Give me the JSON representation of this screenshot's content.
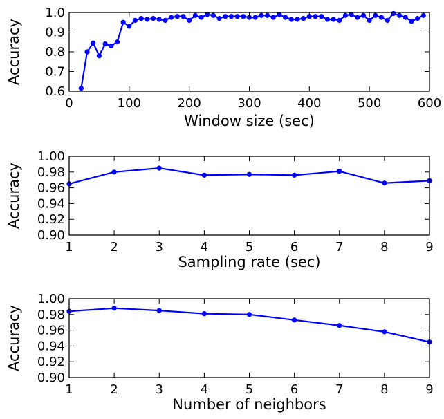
{
  "chart_data": [
    {
      "type": "line",
      "xlabel": "Window size (sec)",
      "ylabel": "Accuracy",
      "xlim": [
        0,
        600
      ],
      "ylim": [
        0.6,
        1.0
      ],
      "xticks": [
        "0",
        "100",
        "200",
        "300",
        "400",
        "500",
        "600"
      ],
      "yticks": [
        "0.6",
        "0.7",
        "0.8",
        "0.9",
        "1.0"
      ],
      "grid": false,
      "color": "#0000ff",
      "series": [
        {
          "x": [
            20,
            30,
            40,
            50,
            60,
            70,
            80,
            90,
            100,
            110,
            120,
            130,
            140,
            150,
            160,
            170,
            180,
            190,
            200,
            210,
            220,
            230,
            240,
            250,
            260,
            270,
            280,
            290,
            300,
            310,
            320,
            330,
            340,
            350,
            360,
            370,
            380,
            390,
            400,
            410,
            420,
            430,
            440,
            450,
            460,
            470,
            480,
            490,
            500,
            510,
            520,
            530,
            540,
            550,
            560,
            570,
            580,
            590
          ],
          "values": [
            0.615,
            0.8,
            0.845,
            0.78,
            0.84,
            0.83,
            0.85,
            0.95,
            0.93,
            0.96,
            0.97,
            0.965,
            0.97,
            0.965,
            0.96,
            0.975,
            0.98,
            0.98,
            0.96,
            0.985,
            0.975,
            0.99,
            0.985,
            0.97,
            0.98,
            0.98,
            0.98,
            0.98,
            0.975,
            0.975,
            0.985,
            0.985,
            0.975,
            0.99,
            0.975,
            0.965,
            0.965,
            0.97,
            0.98,
            0.98,
            0.98,
            0.965,
            0.965,
            0.96,
            0.985,
            0.99,
            0.975,
            0.985,
            0.96,
            0.985,
            0.975,
            0.96,
            0.995,
            0.985,
            0.975,
            0.955,
            0.97,
            0.985
          ]
        }
      ]
    },
    {
      "type": "line",
      "xlabel": "Sampling rate (sec)",
      "ylabel": "Accuracy",
      "xlim": [
        1,
        9
      ],
      "ylim": [
        0.9,
        1.0
      ],
      "xticks": [
        "1",
        "2",
        "3",
        "4",
        "5",
        "6",
        "7",
        "8",
        "9"
      ],
      "yticks": [
        "0.90",
        "0.92",
        "0.94",
        "0.96",
        "0.98",
        "1.00"
      ],
      "grid": false,
      "color": "#0000ff",
      "series": [
        {
          "x": [
            1,
            2,
            3,
            4,
            5,
            6,
            7,
            8,
            9
          ],
          "values": [
            0.965,
            0.98,
            0.985,
            0.976,
            0.977,
            0.976,
            0.981,
            0.966,
            0.969
          ]
        }
      ]
    },
    {
      "type": "line",
      "xlabel": "Number of neighbors",
      "ylabel": "Accuracy",
      "xlim": [
        1,
        9
      ],
      "ylim": [
        0.9,
        1.0
      ],
      "xticks": [
        "1",
        "2",
        "3",
        "4",
        "5",
        "6",
        "7",
        "8",
        "9"
      ],
      "yticks": [
        "0.90",
        "0.92",
        "0.94",
        "0.96",
        "0.98",
        "1.00"
      ],
      "grid": false,
      "color": "#0000ff",
      "series": [
        {
          "x": [
            1,
            2,
            3,
            4,
            5,
            6,
            7,
            8,
            9
          ],
          "values": [
            0.984,
            0.988,
            0.985,
            0.981,
            0.98,
            0.973,
            0.966,
            0.958,
            0.945
          ]
        }
      ]
    }
  ]
}
